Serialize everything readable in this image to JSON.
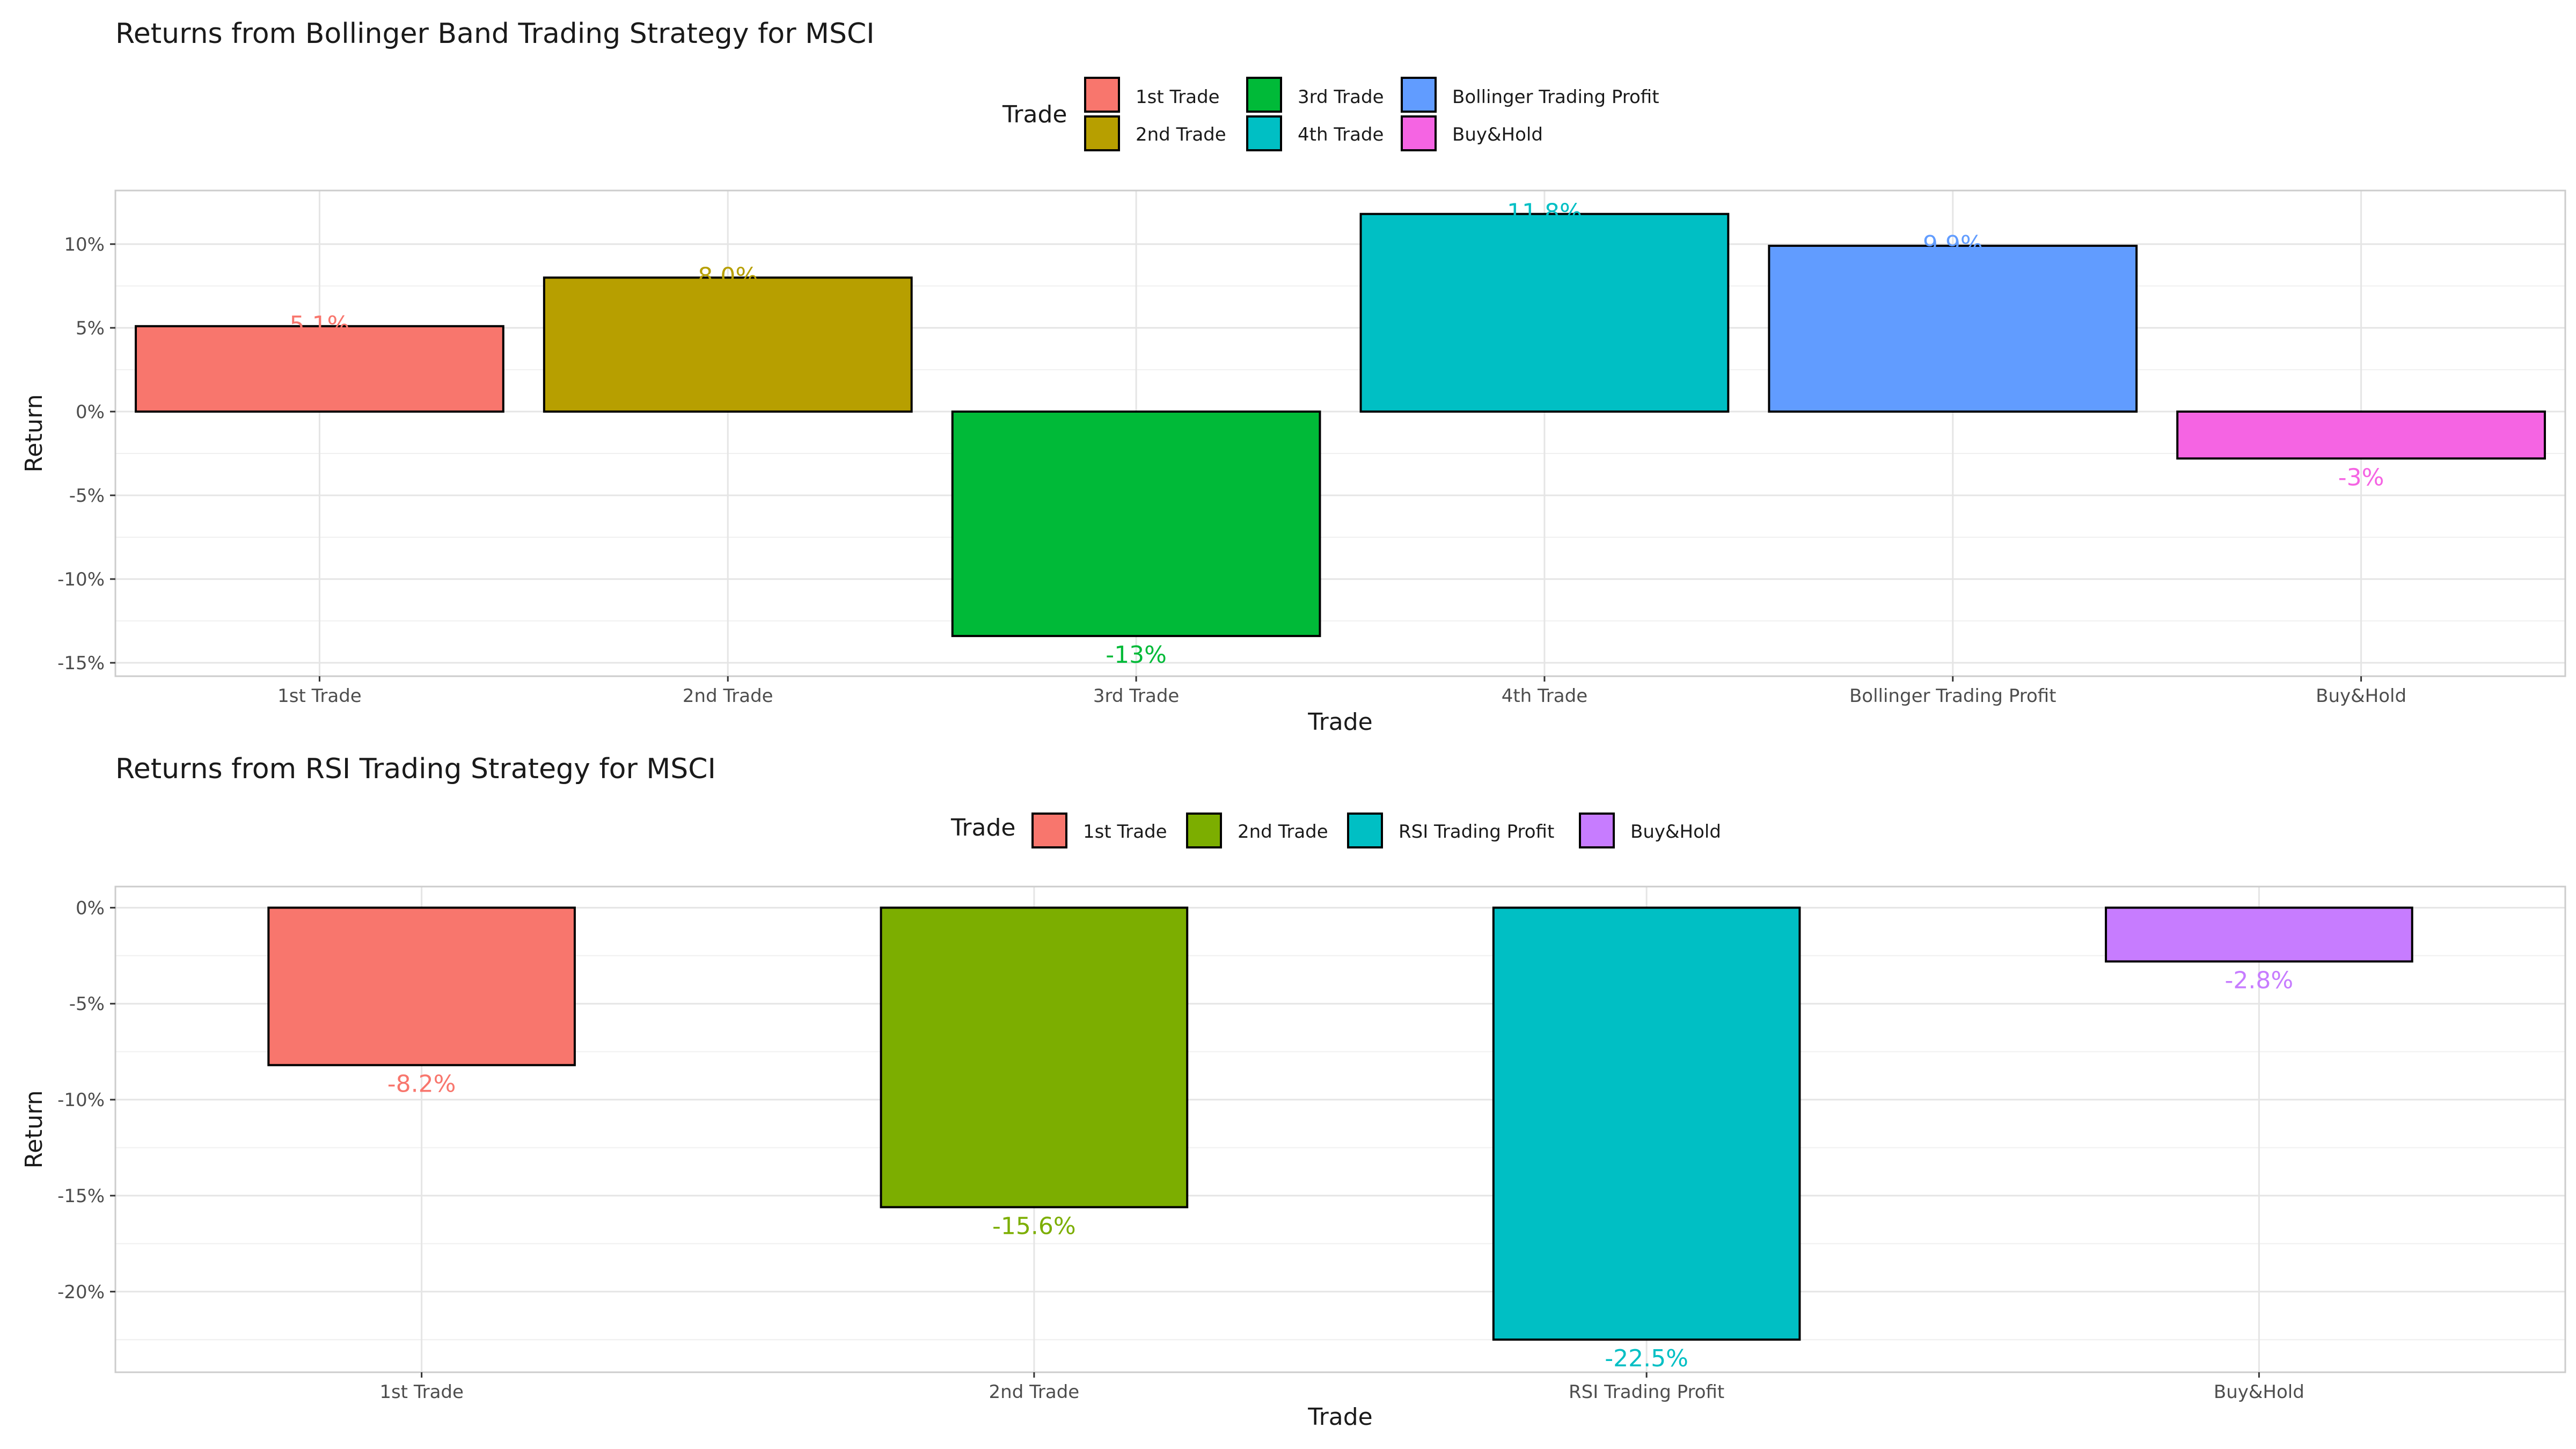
{
  "chart_data": [
    {
      "type": "bar",
      "title": "Returns from Bollinger Band Trading Strategy for MSCI",
      "xlabel": "Trade",
      "ylabel": "Return",
      "legend_title": "Trade",
      "legend_position": "top",
      "grid": true,
      "ylim": [
        -15.8,
        13.2
      ],
      "y_ticks": [
        10,
        5,
        0,
        -5,
        -10,
        -15
      ],
      "y_tick_labels": [
        "10%",
        "5%",
        "0%",
        "-5%",
        "-10%",
        "-15%"
      ],
      "categories": [
        "1st Trade",
        "2nd Trade",
        "3rd Trade",
        "4th Trade",
        "Bollinger Trading Profit",
        "Buy&Hold"
      ],
      "values": [
        5.1,
        8.0,
        -13.4,
        11.8,
        9.9,
        -2.8
      ],
      "data_labels": [
        "5.1%",
        "8.0%",
        "-13%",
        "11.8%",
        "9.9%",
        "-3%"
      ],
      "colors": [
        "#F8766D",
        "#B79F00",
        "#00BA38",
        "#00BFC4",
        "#619CFF",
        "#F564E3"
      ]
    },
    {
      "type": "bar",
      "title": "Returns from RSI Trading Strategy for MSCI",
      "xlabel": "Trade",
      "ylabel": "Return",
      "legend_title": "Trade",
      "legend_position": "top",
      "grid": true,
      "ylim": [
        -24.2,
        1.1
      ],
      "y_ticks": [
        0,
        -5,
        -10,
        -15,
        -20
      ],
      "y_tick_labels": [
        "0%",
        "-5%",
        "-10%",
        "-15%",
        "-20%"
      ],
      "categories": [
        "1st Trade",
        "2nd Trade",
        "RSI Trading Profit",
        "Buy&Hold"
      ],
      "values": [
        -8.2,
        -15.6,
        -22.5,
        -2.8
      ],
      "data_labels": [
        "-8.2%",
        "-15.6%",
        "-22.5%",
        "-2.8%"
      ],
      "colors": [
        "#F8766D",
        "#7CAE00",
        "#00BFC4",
        "#C77CFF"
      ]
    }
  ]
}
